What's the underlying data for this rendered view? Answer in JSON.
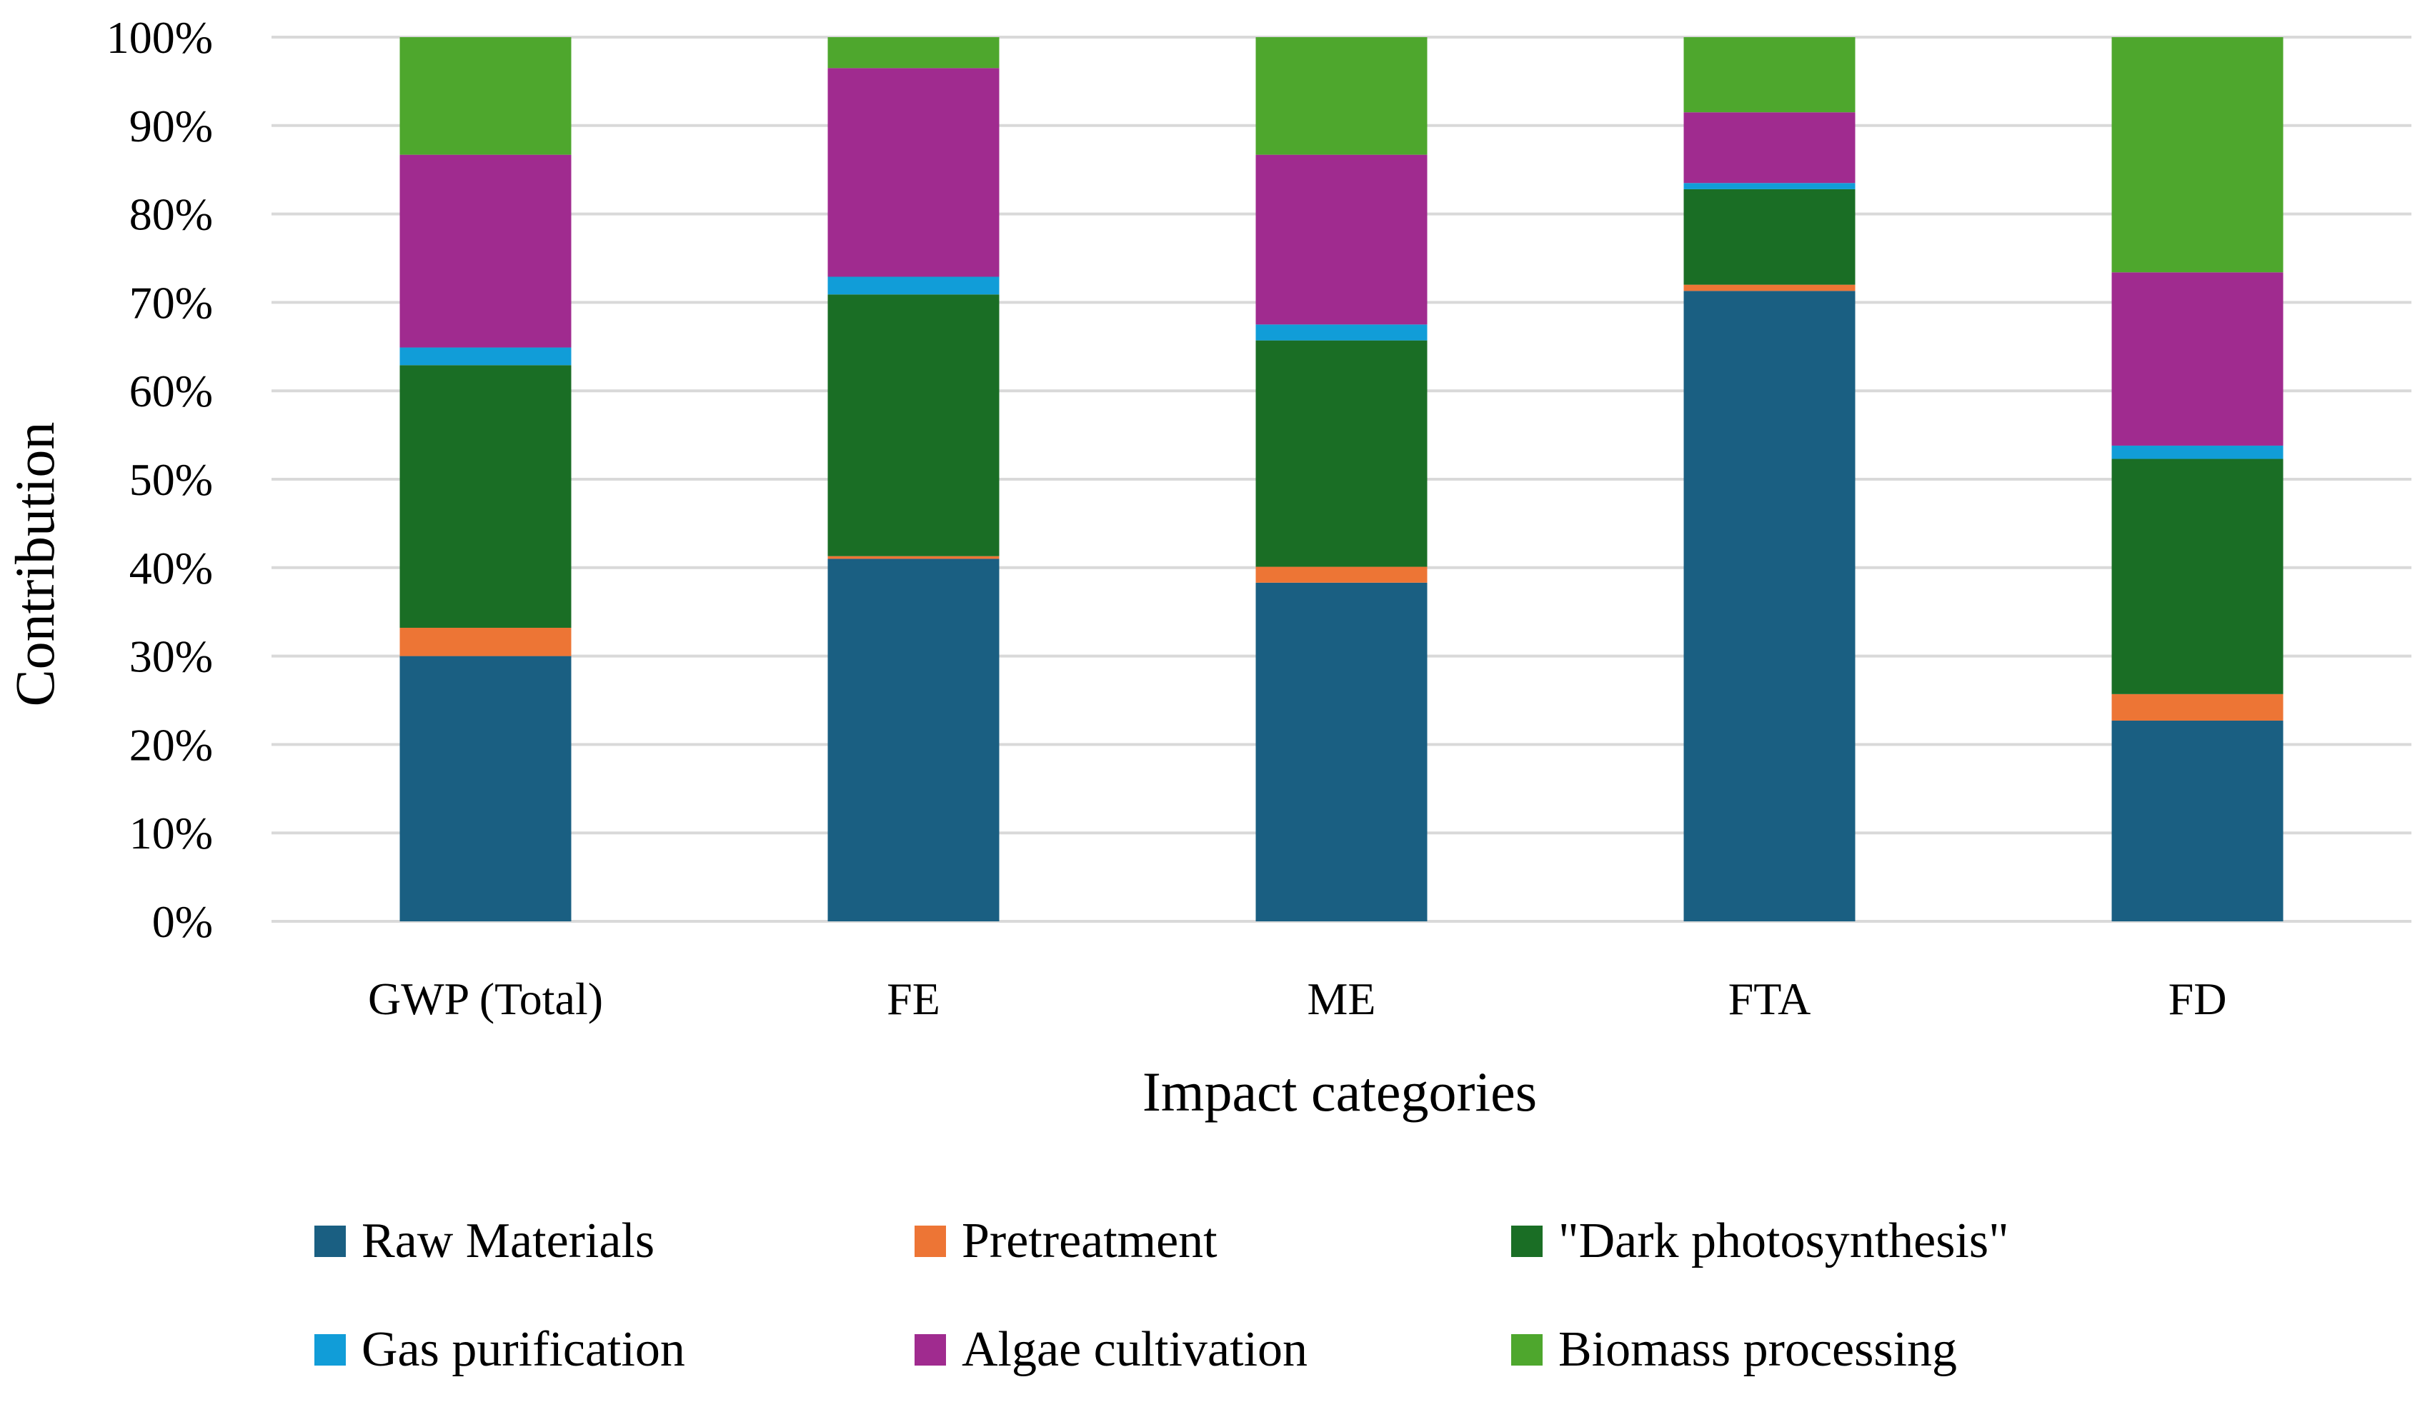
{
  "chart_data": {
    "type": "bar",
    "stacked": true,
    "percent": true,
    "categories": [
      "GWP (Total)",
      "FE",
      "ME",
      "FTA",
      "FD"
    ],
    "xlabel": "Impact categories",
    "ylabel": "Contribution",
    "ylim": [
      0,
      100
    ],
    "yticks": [
      "0%",
      "10%",
      "20%",
      "30%",
      "40%",
      "50%",
      "60%",
      "70%",
      "80%",
      "90%",
      "100%"
    ],
    "grid": true,
    "legend_position": "bottom",
    "series": [
      {
        "name": "Raw Materials",
        "color": "#1a5f82",
        "values": [
          30,
          41,
          38.3,
          71.3,
          22.7
        ]
      },
      {
        "name": "Pretreatment",
        "color": "#ed7535",
        "values": [
          3.2,
          0.3,
          1.8,
          0.7,
          3.0
        ]
      },
      {
        "name": "\"Dark photosynthesis\"",
        "color": "#1a6e25",
        "values": [
          29.7,
          29.6,
          25.6,
          10.8,
          26.6
        ]
      },
      {
        "name": "Gas purification",
        "color": "#119dd8",
        "values": [
          2,
          2,
          1.8,
          0.7,
          1.5
        ]
      },
      {
        "name": "Algae cultivation",
        "color": "#a02b8f",
        "values": [
          21.8,
          23.6,
          19.2,
          8.0,
          19.6
        ]
      },
      {
        "name": "Biomass processing",
        "color": "#4ea72d",
        "values": [
          13.3,
          3.5,
          13.3,
          8.5,
          26.6
        ]
      }
    ]
  }
}
